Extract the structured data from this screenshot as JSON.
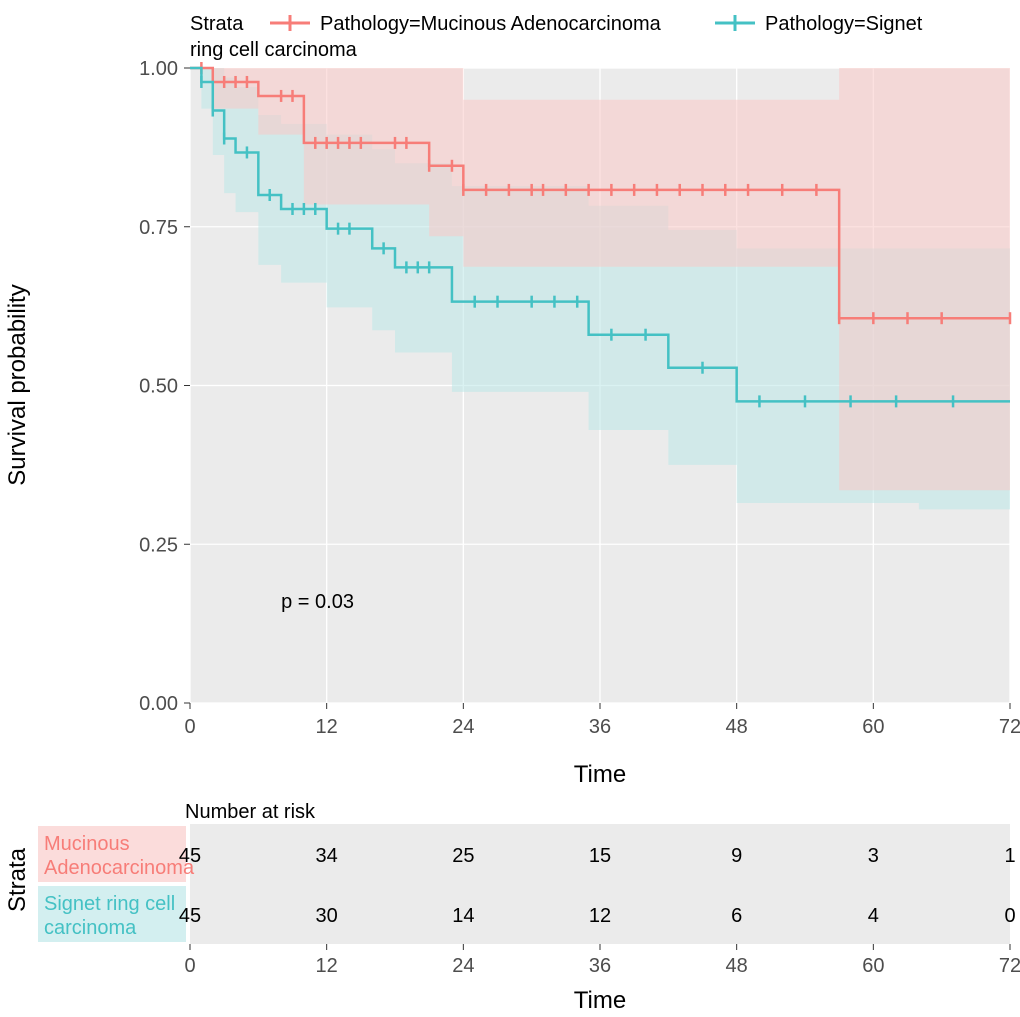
{
  "chart": {
    "type": "kaplan-meier-survival",
    "background_color": "#ffffff",
    "legend": {
      "prefix": "Strata",
      "items": [
        {
          "label": "Pathology=Mucinous Adenocarcinoma",
          "color": "#f77d78"
        },
        {
          "label": "Pathology=Signet ring cell carcinoma",
          "color": "#44c1c4"
        }
      ]
    },
    "ylabel": "Survival probability",
    "xlabel_main": "Time",
    "xlabel_risk": "Time",
    "strata_axis_label": "Strata",
    "ylim": [
      0.0,
      1.0
    ],
    "yticks": [
      0.0,
      0.25,
      0.5,
      0.75,
      1.0
    ],
    "xlim": [
      0,
      72
    ],
    "xticks": [
      0,
      12,
      24,
      36,
      48,
      60,
      72
    ],
    "p_value": "p = 0.03",
    "grid_color": "#ffffff",
    "panel_bg": "#ebebeb",
    "tick_fontsize": 20,
    "label_fontsize": 24,
    "series": [
      {
        "name": "Mucinous Adenocarcinoma",
        "color": "#f77d78",
        "ci_fill": "#f9c9c7",
        "ci_opacity": 0.55,
        "steps": [
          [
            0,
            1.0
          ],
          [
            2,
            1.0
          ],
          [
            2,
            0.978
          ],
          [
            6,
            0.978
          ],
          [
            6,
            0.956
          ],
          [
            10,
            0.956
          ],
          [
            10,
            0.882
          ],
          [
            11,
            0.882
          ],
          [
            21,
            0.882
          ],
          [
            21,
            0.846
          ],
          [
            24,
            0.846
          ],
          [
            24,
            0.808
          ],
          [
            57,
            0.808
          ],
          [
            57,
            0.606
          ],
          [
            72,
            0.606
          ]
        ],
        "censor_x": [
          1,
          3,
          4,
          5,
          8,
          9,
          11,
          12,
          13,
          14,
          15,
          18,
          19,
          21,
          23,
          24,
          26,
          28,
          30,
          31,
          33,
          35,
          37,
          39,
          41,
          43,
          45,
          47,
          49,
          52,
          55,
          57,
          60,
          63,
          66,
          72
        ],
        "ci_lower": [
          [
            0,
            1.0
          ],
          [
            2,
            1.0
          ],
          [
            2,
            0.936
          ],
          [
            6,
            0.936
          ],
          [
            6,
            0.895
          ],
          [
            10,
            0.895
          ],
          [
            10,
            0.785
          ],
          [
            21,
            0.785
          ],
          [
            21,
            0.735
          ],
          [
            24,
            0.735
          ],
          [
            24,
            0.687
          ],
          [
            57,
            0.687
          ],
          [
            57,
            0.335
          ],
          [
            72,
            0.335
          ]
        ],
        "ci_upper": [
          [
            0,
            1.0
          ],
          [
            24,
            1.0
          ],
          [
            24,
            0.95
          ],
          [
            57,
            0.95
          ],
          [
            57,
            1.0
          ],
          [
            72,
            1.0
          ]
        ]
      },
      {
        "name": "Signet ring cell carcinoma",
        "color": "#44c1c4",
        "ci_fill": "#bce7e8",
        "ci_opacity": 0.55,
        "steps": [
          [
            0,
            1.0
          ],
          [
            1,
            1.0
          ],
          [
            1,
            0.978
          ],
          [
            2,
            0.978
          ],
          [
            2,
            0.933
          ],
          [
            3,
            0.933
          ],
          [
            3,
            0.889
          ],
          [
            4,
            0.889
          ],
          [
            4,
            0.867
          ],
          [
            6,
            0.867
          ],
          [
            6,
            0.8
          ],
          [
            8,
            0.8
          ],
          [
            8,
            0.778
          ],
          [
            12,
            0.778
          ],
          [
            12,
            0.747
          ],
          [
            16,
            0.747
          ],
          [
            16,
            0.716
          ],
          [
            18,
            0.716
          ],
          [
            18,
            0.686
          ],
          [
            23,
            0.686
          ],
          [
            23,
            0.632
          ],
          [
            35,
            0.632
          ],
          [
            35,
            0.58
          ],
          [
            42,
            0.58
          ],
          [
            42,
            0.528
          ],
          [
            48,
            0.528
          ],
          [
            48,
            0.475
          ],
          [
            72,
            0.475
          ]
        ],
        "censor_x": [
          1,
          2,
          3,
          5,
          7,
          9,
          10,
          11,
          13,
          14,
          17,
          19,
          20,
          21,
          25,
          27,
          30,
          32,
          34,
          37,
          40,
          45,
          50,
          54,
          58,
          62,
          67
        ],
        "ci_lower": [
          [
            0,
            1.0
          ],
          [
            1,
            1.0
          ],
          [
            1,
            0.936
          ],
          [
            2,
            0.936
          ],
          [
            2,
            0.863
          ],
          [
            3,
            0.863
          ],
          [
            3,
            0.803
          ],
          [
            4,
            0.803
          ],
          [
            4,
            0.773
          ],
          [
            6,
            0.773
          ],
          [
            6,
            0.69
          ],
          [
            8,
            0.69
          ],
          [
            8,
            0.662
          ],
          [
            12,
            0.662
          ],
          [
            12,
            0.623
          ],
          [
            16,
            0.623
          ],
          [
            16,
            0.587
          ],
          [
            18,
            0.587
          ],
          [
            18,
            0.552
          ],
          [
            23,
            0.552
          ],
          [
            23,
            0.49
          ],
          [
            35,
            0.49
          ],
          [
            35,
            0.43
          ],
          [
            42,
            0.43
          ],
          [
            42,
            0.375
          ],
          [
            48,
            0.375
          ],
          [
            48,
            0.315
          ],
          [
            64,
            0.315
          ],
          [
            64,
            0.305
          ],
          [
            72,
            0.305
          ]
        ],
        "ci_upper": [
          [
            0,
            1.0
          ],
          [
            3,
            1.0
          ],
          [
            3,
            0.985
          ],
          [
            4,
            0.985
          ],
          [
            4,
            0.97
          ],
          [
            6,
            0.97
          ],
          [
            6,
            0.926
          ],
          [
            8,
            0.926
          ],
          [
            8,
            0.912
          ],
          [
            12,
            0.912
          ],
          [
            12,
            0.895
          ],
          [
            16,
            0.895
          ],
          [
            16,
            0.872
          ],
          [
            18,
            0.872
          ],
          [
            18,
            0.85
          ],
          [
            23,
            0.85
          ],
          [
            23,
            0.814
          ],
          [
            35,
            0.814
          ],
          [
            35,
            0.783
          ],
          [
            42,
            0.783
          ],
          [
            42,
            0.745
          ],
          [
            48,
            0.745
          ],
          [
            48,
            0.716
          ],
          [
            72,
            0.716
          ]
        ]
      }
    ],
    "risk_table": {
      "title": "Number at risk",
      "rows": [
        {
          "label": "Mucinous Adenocarcinoma",
          "color": "#f77d78",
          "bg": "#f9c9c7",
          "counts": [
            45,
            34,
            25,
            15,
            9,
            3,
            1
          ]
        },
        {
          "label": "Signet ring cell carcinoma",
          "color": "#44c1c4",
          "bg": "#bce7e8",
          "counts": [
            45,
            30,
            14,
            12,
            6,
            4,
            0
          ]
        }
      ]
    }
  }
}
